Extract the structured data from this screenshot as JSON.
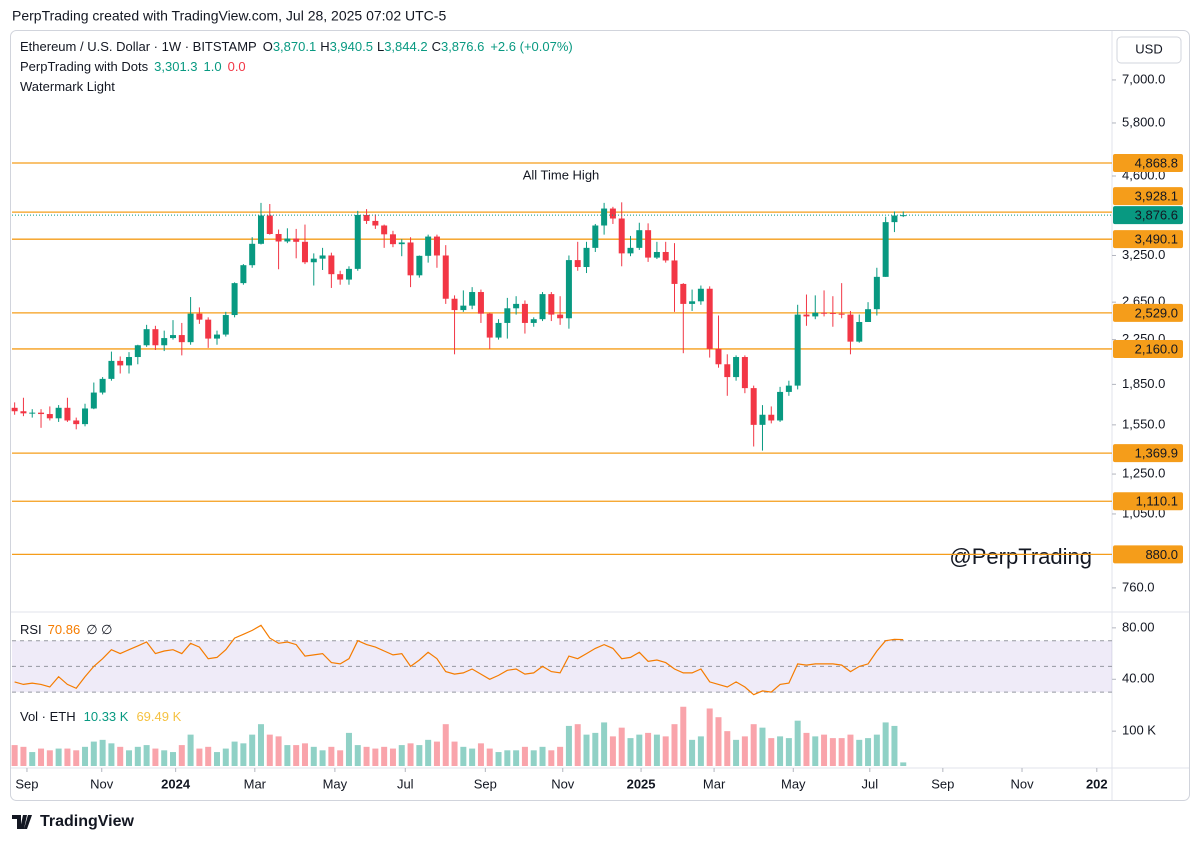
{
  "caption": "PerpTrading created with TradingView.com, Jul 28, 2025 07:02 UTC-5",
  "footer": "TradingView",
  "chart_data": [
    {
      "type": "candlestick",
      "symbol": "Ethereum / U.S. Dollar · 1W · BITSTAMP",
      "ohlc_legend": [
        {
          "key": "O",
          "value": "3,870.1"
        },
        {
          "key": "H",
          "value": "3,940.5"
        },
        {
          "key": "L",
          "value": "3,844.2"
        },
        {
          "key": "C",
          "value": "3,876.6"
        }
      ],
      "change": "+2.6 (+0.07%)",
      "indicators": [
        {
          "name": "PerpTrading with Dots",
          "values": [
            "3,301.3",
            "1.0",
            "0.0"
          ]
        },
        {
          "name": "Watermark Light",
          "values": []
        }
      ],
      "currency": "USD",
      "annotation": "All Time High",
      "watermark": "@PerpTrading",
      "last_price_label": "3,876.6",
      "up_color": "#089981",
      "down_color": "#f23645",
      "level_color": "#f59d1a",
      "log_scale": true,
      "x": [
        0,
        1,
        2,
        3,
        4,
        5,
        6,
        7,
        8,
        9,
        10,
        11,
        12,
        13,
        14,
        15,
        16,
        17,
        18,
        19,
        20,
        21,
        22,
        23,
        24,
        25,
        26,
        27,
        28,
        29,
        30,
        31,
        32,
        33,
        34,
        35,
        36,
        37,
        38,
        39,
        40,
        41,
        42,
        43,
        44,
        45,
        46,
        47,
        48,
        49,
        50,
        51,
        52,
        53,
        54,
        55,
        56,
        57,
        58,
        59,
        60,
        61,
        62,
        63,
        64,
        65,
        66,
        67,
        68,
        69,
        70,
        71,
        72,
        73,
        74,
        75,
        76,
        77,
        78,
        79,
        80,
        81,
        82,
        83,
        84,
        85,
        86,
        87,
        88,
        89,
        90,
        91,
        92,
        93,
        94,
        95,
        96,
        97,
        98,
        99,
        100,
        101
      ],
      "open": [
        1670,
        1645,
        1630,
        1635,
        1625,
        1595,
        1670,
        1580,
        1555,
        1665,
        1785,
        1895,
        2050,
        2010,
        2085,
        2195,
        2355,
        2195,
        2265,
        2295,
        2225,
        2520,
        2455,
        2260,
        2300,
        2505,
        2880,
        3115,
        3420,
        3870,
        3570,
        3455,
        3500,
        3450,
        3155,
        3205,
        3250,
        2995,
        2925,
        3065,
        3880,
        3780,
        3705,
        3565,
        3415,
        3440,
        2980,
        3245,
        3530,
        3250,
        2690,
        2560,
        2610,
        2770,
        2520,
        2270,
        2420,
        2580,
        2630,
        2420,
        2460,
        2745,
        2510,
        2470,
        3185,
        3090,
        3360,
        3705,
        3990,
        3820,
        3280,
        3360,
        3630,
        3220,
        3300,
        3180,
        2870,
        2630,
        2660,
        2810,
        2160,
        2020,
        1910,
        2085,
        1820,
        1550,
        1620,
        1580,
        1790,
        1840,
        2510,
        2490,
        2530,
        2528,
        2520,
        2510,
        2230,
        2430,
        2570,
        2960,
        3760,
        3870.1
      ],
      "high": [
        1710,
        1745,
        1660,
        1660,
        1680,
        1690,
        1745,
        1600,
        1700,
        1865,
        1910,
        2135,
        2090,
        2130,
        2200,
        2400,
        2390,
        2340,
        2450,
        2420,
        2710,
        2590,
        2480,
        2340,
        2540,
        2890,
        3130,
        3520,
        4090,
        4070,
        3640,
        3660,
        3650,
        3720,
        3280,
        3360,
        3290,
        3040,
        3100,
        3950,
        3980,
        3890,
        3720,
        3620,
        3490,
        3520,
        3250,
        3560,
        3560,
        3400,
        2730,
        2790,
        2830,
        2800,
        2530,
        2460,
        2700,
        2720,
        2670,
        2480,
        2770,
        2770,
        2720,
        3250,
        3450,
        3450,
        3730,
        4090,
        4020,
        4100,
        3540,
        3750,
        3740,
        3450,
        3450,
        3430,
        2880,
        2800,
        2850,
        2840,
        2500,
        2110,
        2100,
        2100,
        1840,
        1690,
        1680,
        1830,
        1880,
        2620,
        2740,
        2730,
        2790,
        2720,
        2880,
        2550,
        2510,
        2650,
        3080,
        3850,
        3940,
        3940.5
      ],
      "low": [
        1620,
        1610,
        1600,
        1530,
        1580,
        1570,
        1570,
        1520,
        1540,
        1660,
        1770,
        1880,
        1940,
        1940,
        2020,
        2180,
        2150,
        2140,
        2250,
        2100,
        2200,
        2410,
        2170,
        2200,
        2280,
        2480,
        2860,
        3080,
        3410,
        3560,
        3060,
        3430,
        3210,
        3130,
        2850,
        3050,
        2820,
        2860,
        2860,
        3040,
        3730,
        3650,
        3360,
        3370,
        3240,
        2830,
        2950,
        3150,
        3080,
        2630,
        2110,
        2540,
        2570,
        2420,
        2160,
        2250,
        2260,
        2510,
        2310,
        2380,
        2440,
        2440,
        2400,
        2360,
        3040,
        3010,
        3300,
        3560,
        3730,
        3100,
        3240,
        3330,
        3160,
        3200,
        3150,
        2540,
        2120,
        2550,
        2620,
        2080,
        1990,
        1760,
        1880,
        1780,
        1410,
        1385,
        1560,
        1570,
        1760,
        1810,
        2390,
        2460,
        2490,
        2380,
        2470,
        2110,
        2220,
        2430,
        2500,
        2960,
        3600,
        3844.2
      ],
      "close": [
        1645,
        1630,
        1635,
        1625,
        1595,
        1670,
        1580,
        1555,
        1665,
        1785,
        1895,
        2050,
        2010,
        2085,
        2195,
        2355,
        2195,
        2265,
        2295,
        2225,
        2520,
        2455,
        2260,
        2300,
        2505,
        2880,
        3115,
        3420,
        3870,
        3570,
        3455,
        3500,
        3450,
        3155,
        3205,
        3250,
        2995,
        2925,
        3065,
        3880,
        3780,
        3705,
        3565,
        3415,
        3440,
        2980,
        3245,
        3530,
        3250,
        2690,
        2560,
        2610,
        2770,
        2520,
        2270,
        2420,
        2580,
        2630,
        2420,
        2460,
        2745,
        2510,
        2470,
        3185,
        3090,
        3360,
        3705,
        3990,
        3820,
        3280,
        3360,
        3630,
        3220,
        3300,
        3180,
        2870,
        2630,
        2660,
        2810,
        2160,
        2020,
        1910,
        2085,
        1820,
        1550,
        1620,
        1580,
        1790,
        1840,
        2510,
        2490,
        2530,
        2528,
        2520,
        2510,
        2230,
        2430,
        2570,
        2960,
        3760,
        3870,
        3876.6
      ],
      "levels": [
        {
          "value": 4868.8,
          "label": "4,868.8"
        },
        {
          "value": 3928.1,
          "label": "3,928.1"
        },
        {
          "value": 3490.1,
          "label": "3,490.1"
        },
        {
          "value": 2529.0,
          "label": "2,529.0"
        },
        {
          "value": 2160.0,
          "label": "2,160.0"
        },
        {
          "value": 1369.9,
          "label": "1,369.9"
        },
        {
          "value": 1110.1,
          "label": "1,110.1"
        },
        {
          "value": 880.0,
          "label": "880.0"
        }
      ],
      "ylim": [
        690,
        8520
      ],
      "yticks": [
        {
          "value": 7000,
          "label": "7,000.0"
        },
        {
          "value": 5800,
          "label": "5,800.0"
        },
        {
          "value": 4600,
          "label": "4,600.0"
        },
        {
          "value": 3250,
          "label": "3,250.0"
        },
        {
          "value": 2650,
          "label": "2,650.0"
        },
        {
          "value": 2250,
          "label": "2,250.0"
        },
        {
          "value": 1850,
          "label": "1,850.0"
        },
        {
          "value": 1550,
          "label": "1,550.0"
        },
        {
          "value": 1250,
          "label": "1,250.0"
        },
        {
          "value": 1050,
          "label": "1,050.0"
        },
        {
          "value": 760,
          "label": "760.0"
        }
      ],
      "xlim": [
        -0.3,
        124.5
      ],
      "xticks": [
        {
          "value": 1.4,
          "label": "Sep"
        },
        {
          "value": 9.9,
          "label": "Nov"
        },
        {
          "value": 18.3,
          "label": "2024"
        },
        {
          "value": 27.3,
          "label": "Mar"
        },
        {
          "value": 36.4,
          "label": "May"
        },
        {
          "value": 44.4,
          "label": "Jul"
        },
        {
          "value": 53.5,
          "label": "Sep"
        },
        {
          "value": 62.3,
          "label": "Nov"
        },
        {
          "value": 71.2,
          "label": "2025"
        },
        {
          "value": 79.5,
          "label": "Mar"
        },
        {
          "value": 88.5,
          "label": "May"
        },
        {
          "value": 97.2,
          "label": "Jul"
        },
        {
          "value": 105.5,
          "label": "Sep"
        },
        {
          "value": 114.5,
          "label": "Nov"
        },
        {
          "value": 123.0,
          "label": "202"
        }
      ]
    },
    {
      "type": "line",
      "name": "RSI",
      "legend_extra": "∅ ∅",
      "color": "#f57c00",
      "band_color": "#7e57c2",
      "values": [
        38,
        36,
        37,
        36,
        34,
        42,
        36,
        33,
        42,
        50,
        56,
        63,
        60,
        63,
        66,
        69,
        60,
        62,
        63,
        60,
        68,
        65,
        56,
        57,
        63,
        72,
        75,
        78,
        82,
        72,
        68,
        69,
        67,
        58,
        59,
        60,
        53,
        52,
        56,
        70,
        67,
        65,
        62,
        59,
        60,
        50,
        55,
        61,
        56,
        46,
        44,
        45,
        48,
        44,
        40,
        43,
        47,
        48,
        44,
        45,
        50,
        46,
        45,
        58,
        56,
        60,
        64,
        67,
        64,
        56,
        57,
        61,
        54,
        55,
        53,
        48,
        45,
        45,
        48,
        38,
        36,
        34,
        38,
        34,
        28,
        31,
        30,
        36,
        37,
        52,
        51,
        52,
        52,
        52,
        51,
        46,
        50,
        52,
        62,
        70,
        71,
        70.86
      ],
      "levels": [
        70,
        50,
        30
      ],
      "ylim": [
        20,
        90
      ],
      "yticks": [
        {
          "value": 80,
          "label": "80.00"
        },
        {
          "value": 40,
          "label": "40.00"
        }
      ]
    },
    {
      "type": "bar",
      "name": "Vol · ETH",
      "legend_value": "10.33 K",
      "legend_ma": "69.49 K",
      "up_color": "rgba(8,153,129,0.45)",
      "down_color": "rgba(242,54,69,0.45)",
      "values": [
        60000,
        55000,
        40000,
        50000,
        45000,
        50000,
        50000,
        45000,
        55000,
        70000,
        75000,
        65000,
        55000,
        45000,
        55000,
        60000,
        50000,
        45000,
        40000,
        60000,
        90000,
        50000,
        55000,
        40000,
        50000,
        70000,
        65000,
        90000,
        120000,
        90000,
        85000,
        60000,
        60000,
        65000,
        55000,
        45000,
        55000,
        45000,
        95000,
        60000,
        55000,
        50000,
        55000,
        50000,
        60000,
        65000,
        60000,
        75000,
        70000,
        120000,
        70000,
        55000,
        50000,
        65000,
        50000,
        40000,
        45000,
        45000,
        55000,
        45000,
        55000,
        45000,
        55000,
        115000,
        120000,
        90000,
        95000,
        125000,
        85000,
        110000,
        80000,
        90000,
        95000,
        90000,
        85000,
        120000,
        170000,
        75000,
        85000,
        165000,
        140000,
        100000,
        75000,
        85000,
        120000,
        110000,
        80000,
        85000,
        80000,
        130000,
        95000,
        85000,
        90000,
        80000,
        80000,
        90000,
        75000,
        80000,
        90000,
        125000,
        115000,
        10330
      ],
      "ylim": [
        0,
        175000
      ],
      "yticks": [
        {
          "value": 100000,
          "label": "100 K"
        }
      ]
    }
  ]
}
